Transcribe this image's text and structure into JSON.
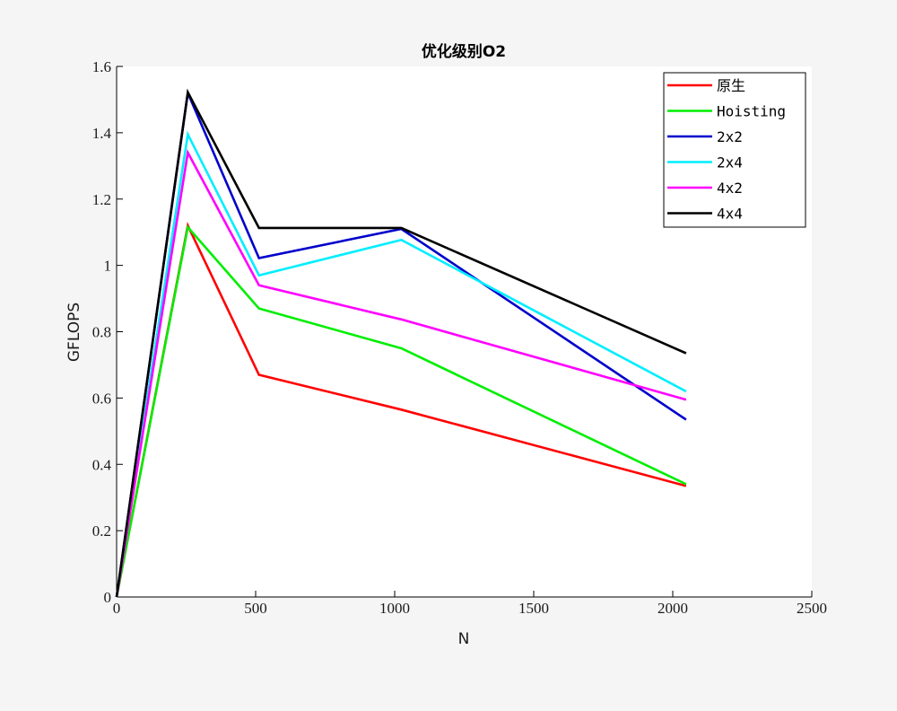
{
  "chart_data": {
    "type": "line",
    "title": "优化级别O2",
    "xlabel": "N",
    "ylabel": "GFLOPS",
    "xlim": [
      0,
      2500
    ],
    "ylim": [
      0,
      1.6
    ],
    "xticks": [
      0,
      500,
      1000,
      1500,
      2000,
      2500
    ],
    "xtick_labels": [
      "0",
      "500",
      "1000",
      "1500",
      "2000",
      "2500"
    ],
    "yticks": [
      0,
      0.2,
      0.4,
      0.6,
      0.8,
      1,
      1.2,
      1.4,
      1.6
    ],
    "ytick_labels": [
      "0",
      "0.2",
      "0.4",
      "0.6",
      "0.8",
      "1",
      "1.2",
      "1.4",
      "1.6"
    ],
    "grid": false,
    "legend_position": "top-right",
    "x": [
      0,
      256,
      512,
      1024,
      2048
    ],
    "series": [
      {
        "name": "原生",
        "color": "#ff0000",
        "values": [
          0,
          1.12,
          0.67,
          0.565,
          0.335
        ]
      },
      {
        "name": "Hoisting",
        "color": "#00ee00",
        "values": [
          0,
          1.115,
          0.87,
          0.75,
          0.34
        ]
      },
      {
        "name": "2x2",
        "color": "#0000cc",
        "values": [
          0,
          1.52,
          1.022,
          1.11,
          0.535
        ]
      },
      {
        "name": "2x4",
        "color": "#00eeff",
        "values": [
          0,
          1.395,
          0.97,
          1.077,
          0.62
        ]
      },
      {
        "name": "4x2",
        "color": "#ff00ff",
        "values": [
          0,
          1.34,
          0.94,
          0.837,
          0.595
        ]
      },
      {
        "name": "4x4",
        "color": "#000000",
        "values": [
          0,
          1.522,
          1.113,
          1.113,
          0.735
        ]
      }
    ]
  }
}
